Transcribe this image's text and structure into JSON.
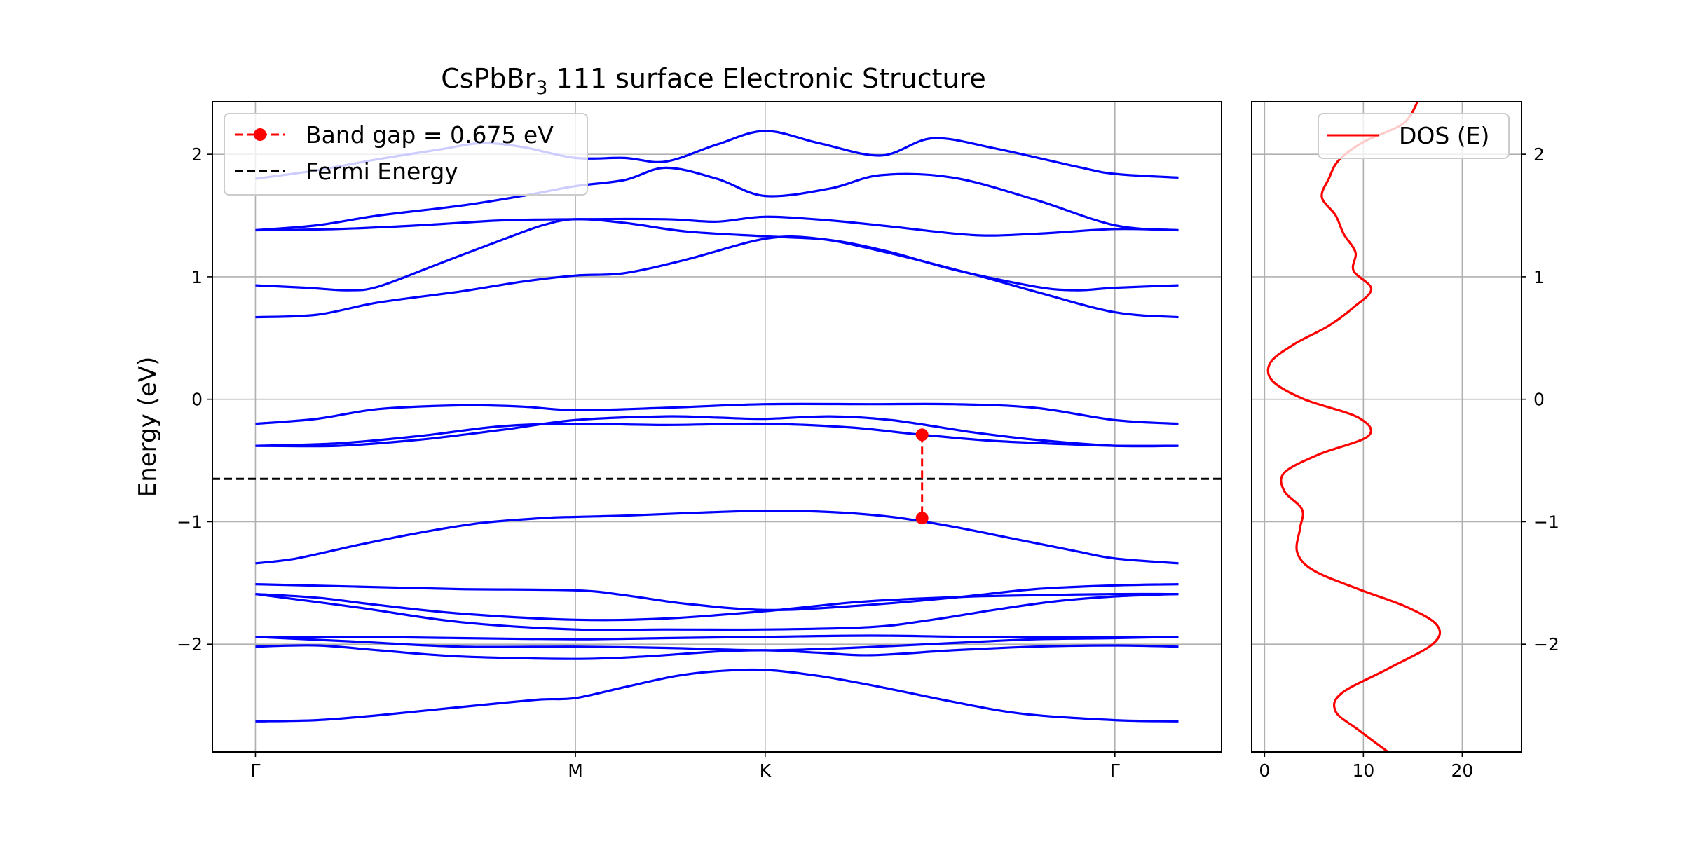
{
  "chart_data": [
    {
      "type": "line",
      "title_main": "CsPbBr",
      "title_sub": "3",
      "title_rest": " 111 surface Electronic Structure",
      "ylabel": "Energy (eV)",
      "xlabel": "",
      "ylim": [
        -2.88,
        2.43
      ],
      "xlim": [
        -0.042,
        0.942
      ],
      "grid": true,
      "legend_position": "top-left",
      "x_ticks": [
        {
          "label": "Γ",
          "x": 0.0
        },
        {
          "label": "M",
          "x": 0.312
        },
        {
          "label": "K",
          "x": 0.497
        },
        {
          "label": "Γ",
          "x": 0.838
        }
      ],
      "y_ticks": [
        {
          "label": "−2",
          "value": -2
        },
        {
          "label": "−1",
          "value": -1
        },
        {
          "label": "0",
          "value": 0
        },
        {
          "label": "1",
          "value": 1
        },
        {
          "label": "2",
          "value": 2
        }
      ],
      "band_color": "#0000ff",
      "bands": [
        {
          "x": [
            0,
            0.06,
            0.12,
            0.18,
            0.24,
            0.28,
            0.312,
            0.36,
            0.41,
            0.45,
            0.497,
            0.55,
            0.61,
            0.68,
            0.75,
            0.838,
            0.9
          ],
          "y": [
            -2.63,
            -2.62,
            -2.58,
            -2.53,
            -2.48,
            -2.45,
            -2.44,
            -2.35,
            -2.26,
            -2.22,
            -2.21,
            -2.26,
            -2.35,
            -2.47,
            -2.57,
            -2.62,
            -2.63
          ]
        },
        {
          "x": [
            0,
            0.06,
            0.12,
            0.2,
            0.312,
            0.38,
            0.45,
            0.497,
            0.55,
            0.6,
            0.68,
            0.76,
            0.838,
            0.9
          ],
          "y": [
            -2.02,
            -2.01,
            -2.05,
            -2.1,
            -2.12,
            -2.1,
            -2.06,
            -2.05,
            -2.07,
            -2.09,
            -2.05,
            -2.02,
            -2.01,
            -2.02
          ]
        },
        {
          "x": [
            0,
            0.1,
            0.2,
            0.312,
            0.4,
            0.497,
            0.58,
            0.68,
            0.76,
            0.838,
            0.9
          ],
          "y": [
            -1.94,
            -1.98,
            -2.02,
            -2.02,
            -2.03,
            -2.05,
            -2.03,
            -1.99,
            -1.96,
            -1.95,
            -1.94
          ]
        },
        {
          "x": [
            0,
            0.1,
            0.2,
            0.312,
            0.4,
            0.497,
            0.6,
            0.7,
            0.838,
            0.9
          ],
          "y": [
            -1.94,
            -1.94,
            -1.95,
            -1.96,
            -1.95,
            -1.94,
            -1.93,
            -1.94,
            -1.94,
            -1.94
          ]
        },
        {
          "x": [
            0,
            0.06,
            0.12,
            0.2,
            0.312,
            0.4,
            0.497,
            0.58,
            0.64,
            0.7,
            0.76,
            0.838,
            0.9
          ],
          "y": [
            -1.59,
            -1.62,
            -1.68,
            -1.75,
            -1.8,
            -1.79,
            -1.73,
            -1.66,
            -1.63,
            -1.61,
            -1.6,
            -1.59,
            -1.59
          ]
        },
        {
          "x": [
            0,
            0.1,
            0.2,
            0.312,
            0.4,
            0.497,
            0.6,
            0.66,
            0.72,
            0.78,
            0.838,
            0.9
          ],
          "y": [
            -1.59,
            -1.7,
            -1.82,
            -1.88,
            -1.88,
            -1.88,
            -1.86,
            -1.8,
            -1.72,
            -1.65,
            -1.61,
            -1.59
          ]
        },
        {
          "x": [
            0,
            0.1,
            0.2,
            0.312,
            0.36,
            0.42,
            0.497,
            0.58,
            0.68,
            0.76,
            0.838,
            0.9
          ],
          "y": [
            -1.51,
            -1.53,
            -1.55,
            -1.56,
            -1.6,
            -1.67,
            -1.72,
            -1.69,
            -1.62,
            -1.55,
            -1.52,
            -1.51
          ]
        },
        {
          "x": [
            0,
            0.04,
            0.1,
            0.16,
            0.22,
            0.28,
            0.312,
            0.36,
            0.42,
            0.497,
            0.56,
            0.62,
            0.68,
            0.74,
            0.8,
            0.838,
            0.9
          ],
          "y": [
            -1.34,
            -1.3,
            -1.19,
            -1.09,
            -1.01,
            -0.97,
            -0.96,
            -0.95,
            -0.93,
            -0.91,
            -0.92,
            -0.96,
            -1.04,
            -1.14,
            -1.24,
            -1.3,
            -1.34
          ]
        },
        {
          "x": [
            0,
            0.08,
            0.16,
            0.24,
            0.312,
            0.4,
            0.497,
            0.58,
            0.65,
            0.72,
            0.8,
            0.838,
            0.9
          ],
          "y": [
            -0.38,
            -0.36,
            -0.3,
            -0.22,
            -0.2,
            -0.21,
            -0.2,
            -0.23,
            -0.29,
            -0.34,
            -0.37,
            -0.38,
            -0.38
          ]
        },
        {
          "x": [
            0,
            0.08,
            0.16,
            0.24,
            0.312,
            0.4,
            0.45,
            0.497,
            0.56,
            0.62,
            0.7,
            0.76,
            0.838,
            0.9
          ],
          "y": [
            -0.38,
            -0.38,
            -0.33,
            -0.25,
            -0.17,
            -0.14,
            -0.15,
            -0.16,
            -0.14,
            -0.17,
            -0.27,
            -0.33,
            -0.38,
            -0.38
          ]
        },
        {
          "x": [
            0,
            0.06,
            0.12,
            0.2,
            0.26,
            0.312,
            0.4,
            0.497,
            0.6,
            0.68,
            0.76,
            0.838,
            0.9
          ],
          "y": [
            -0.2,
            -0.16,
            -0.08,
            -0.05,
            -0.06,
            -0.09,
            -0.07,
            -0.04,
            -0.04,
            -0.04,
            -0.07,
            -0.17,
            -0.2
          ]
        },
        {
          "x": [
            0,
            0.06,
            0.12,
            0.2,
            0.26,
            0.312,
            0.36,
            0.42,
            0.497,
            0.55,
            0.62,
            0.7,
            0.76,
            0.838,
            0.9
          ],
          "y": [
            0.67,
            0.69,
            0.79,
            0.88,
            0.96,
            1.01,
            1.03,
            1.14,
            1.31,
            1.31,
            1.19,
            1.02,
            0.88,
            0.71,
            0.67
          ]
        },
        {
          "x": [
            0,
            0.05,
            0.09,
            0.12,
            0.18,
            0.24,
            0.28,
            0.312,
            0.36,
            0.42,
            0.497,
            0.56,
            0.62,
            0.68,
            0.76,
            0.8,
            0.838,
            0.9
          ],
          "y": [
            0.93,
            0.91,
            0.89,
            0.92,
            1.11,
            1.3,
            1.42,
            1.47,
            1.44,
            1.37,
            1.33,
            1.3,
            1.2,
            1.06,
            0.92,
            0.89,
            0.91,
            0.93
          ]
        },
        {
          "x": [
            0,
            0.08,
            0.16,
            0.24,
            0.312,
            0.4,
            0.45,
            0.497,
            0.56,
            0.62,
            0.7,
            0.76,
            0.838,
            0.9
          ],
          "y": [
            1.38,
            1.39,
            1.42,
            1.46,
            1.47,
            1.47,
            1.45,
            1.49,
            1.46,
            1.41,
            1.34,
            1.35,
            1.39,
            1.38
          ]
        },
        {
          "x": [
            0,
            0.06,
            0.12,
            0.2,
            0.26,
            0.312,
            0.36,
            0.4,
            0.45,
            0.497,
            0.56,
            0.61,
            0.68,
            0.76,
            0.838,
            0.9
          ],
          "y": [
            1.38,
            1.42,
            1.5,
            1.58,
            1.66,
            1.74,
            1.79,
            1.89,
            1.8,
            1.66,
            1.72,
            1.83,
            1.81,
            1.63,
            1.42,
            1.38
          ]
        },
        {
          "x": [
            0,
            0.06,
            0.12,
            0.18,
            0.22,
            0.26,
            0.312,
            0.36,
            0.4,
            0.45,
            0.497,
            0.55,
            0.61,
            0.66,
            0.72,
            0.8,
            0.838,
            0.9
          ],
          "y": [
            1.8,
            1.87,
            1.96,
            2.04,
            2.09,
            2.06,
            1.97,
            1.97,
            1.94,
            2.08,
            2.19,
            2.09,
            1.99,
            2.13,
            2.05,
            1.9,
            1.84,
            1.81
          ]
        }
      ],
      "band_gap": {
        "label": "Band gap = 0.675 eV",
        "x": 0.65,
        "y_top": -0.29,
        "y_bottom": -0.97,
        "color": "#ff0000"
      },
      "fermi": {
        "label": "Fermi Energy",
        "y": -0.65,
        "color": "#000000"
      }
    },
    {
      "type": "line",
      "series_name": "DOS (E)",
      "color": "#ff0000",
      "xlim": [
        -1.3,
        26
      ],
      "ylim": [
        -2.88,
        2.43
      ],
      "grid": true,
      "legend_position": "top-right",
      "x_ticks": [
        {
          "label": "0",
          "value": 0
        },
        {
          "label": "10",
          "value": 10
        },
        {
          "label": "20",
          "value": 20
        }
      ],
      "y_ticks": [
        {
          "label": "−2",
          "value": -2
        },
        {
          "label": "−1",
          "value": -1
        },
        {
          "label": "0",
          "value": 0
        },
        {
          "label": "1",
          "value": 1
        },
        {
          "label": "2",
          "value": 2
        }
      ],
      "curve": {
        "energy": [
          -2.88,
          -2.7,
          -2.55,
          -2.4,
          -2.2,
          -2.0,
          -1.85,
          -1.7,
          -1.55,
          -1.4,
          -1.25,
          -1.05,
          -0.9,
          -0.75,
          -0.6,
          -0.45,
          -0.3,
          -0.15,
          0.0,
          0.15,
          0.3,
          0.45,
          0.6,
          0.75,
          0.9,
          1.05,
          1.2,
          1.35,
          1.5,
          1.65,
          1.8,
          1.95,
          2.1,
          2.25,
          2.43
        ],
        "dos": [
          12.5,
          9.5,
          7.2,
          7.8,
          12.5,
          17.0,
          17.5,
          14.5,
          9.5,
          5.0,
          3.3,
          3.6,
          3.8,
          2.0,
          2.0,
          5.5,
          10.5,
          9.5,
          4.0,
          0.8,
          0.6,
          3.0,
          6.5,
          9.0,
          10.8,
          9.0,
          9.2,
          8.0,
          7.2,
          5.8,
          6.5,
          7.5,
          10.0,
          14.0,
          15.5
        ]
      }
    }
  ]
}
